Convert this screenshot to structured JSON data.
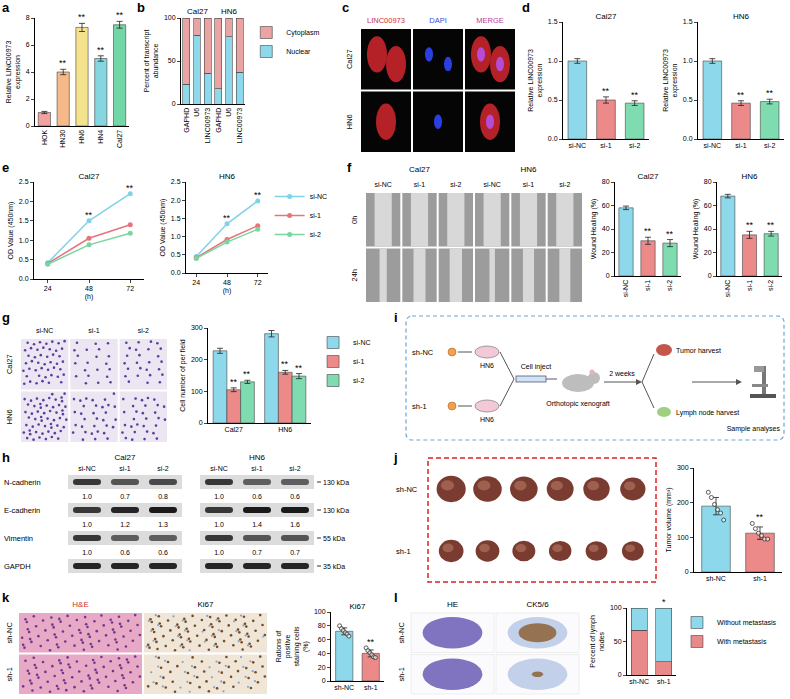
{
  "chart_data": [
    {
      "panel": "a",
      "type": "bar",
      "categories": [
        "HOK",
        "HN30",
        "HN6",
        "HN4",
        "Cal27"
      ],
      "values": [
        1.0,
        4.0,
        7.3,
        5.0,
        7.5
      ],
      "errors": [
        0.08,
        0.2,
        0.3,
        0.2,
        0.25
      ],
      "colors": [
        "#f2a29e",
        "#f6b98a",
        "#f4e38c",
        "#86d6e0",
        "#72d6a6"
      ],
      "y_label": "Relative LINC00973 expression",
      "ylim": [
        0,
        8
      ],
      "yticks": [
        0,
        2,
        4,
        6,
        8
      ],
      "annotations": [
        {
          "at": "HN30",
          "text": "**"
        },
        {
          "at": "HN6",
          "text": "**"
        },
        {
          "at": "HN4",
          "text": "**"
        },
        {
          "at": "Cal27",
          "text": "**"
        }
      ]
    },
    {
      "panel": "b",
      "type": "bar",
      "stacked": true,
      "categories": [
        "GAPHD",
        "U6",
        "LINC00973",
        "GAPHD",
        "U6",
        "LINC00973"
      ],
      "groups": [
        "Cal27",
        "Cal27",
        "Cal27",
        "HN6",
        "HN6",
        "HN6"
      ],
      "series": [
        {
          "name": "Nuclear",
          "color": "#8dd8ea",
          "values": [
            23,
            80,
            36,
            18,
            78,
            37
          ]
        },
        {
          "name": "Cytoplasm",
          "color": "#eaa4a4",
          "values": [
            77,
            20,
            64,
            82,
            22,
            63
          ]
        }
      ],
      "y_label": "Percent of transcript abundance",
      "ylim": [
        0,
        100
      ],
      "yticks": [
        0,
        50,
        100
      ],
      "legend": "right"
    },
    {
      "panel": "d",
      "type": "bar",
      "title": "Cal27",
      "categories": [
        "si-NC",
        "si-1",
        "si-2"
      ],
      "values": [
        1.0,
        0.5,
        0.46
      ],
      "errors": [
        0.03,
        0.04,
        0.03
      ],
      "colors": [
        "#8dd8ea",
        "#ec8a8a",
        "#7fdcb0"
      ],
      "y_label": "Relative LINC00973 expression",
      "ylim": [
        0,
        1.5
      ],
      "yticks": [
        {
          "value": 0,
          "label": "0.0"
        },
        0.5,
        {
          "value": 1,
          "label": "1.0"
        },
        1.5
      ],
      "annotations": [
        {
          "at": "si-1",
          "text": "**"
        },
        {
          "at": "si-2",
          "text": "**"
        }
      ]
    },
    {
      "type": "bar",
      "title": "HN6",
      "categories": [
        "si-NC",
        "si-1",
        "si-2"
      ],
      "values": [
        1.0,
        0.46,
        0.48
      ],
      "errors": [
        0.03,
        0.03,
        0.03
      ],
      "colors": [
        "#8dd8ea",
        "#ec8a8a",
        "#7fdcb0"
      ],
      "y_label": "Relative LINC00973 expression",
      "ylim": [
        0,
        1.5
      ],
      "yticks": [
        {
          "value": 0,
          "label": "0.0"
        },
        0.5,
        {
          "value": 1,
          "label": "1.0"
        },
        1.5
      ],
      "annotations": [
        {
          "at": "si-1",
          "text": "**"
        },
        {
          "at": "si-2",
          "text": "**"
        }
      ]
    },
    {
      "panel": "e",
      "type": "line",
      "title": "Cal27",
      "x": [
        24,
        48,
        72
      ],
      "x_label": "(h)",
      "y_label": "OD Value (450nm)",
      "xlim": [
        16,
        80
      ],
      "xticks": [
        24,
        48,
        72
      ],
      "ylim": [
        0,
        2.5
      ],
      "yticks": [
        {
          "value": 0,
          "label": "0.0"
        },
        0.5,
        {
          "value": 1,
          "label": "1.0"
        },
        1.5,
        {
          "value": 2,
          "label": "2.0"
        },
        2.5
      ],
      "marker": "circle",
      "series": [
        {
          "name": "si-NC",
          "color": "#7fd3e6",
          "values": [
            0.42,
            1.5,
            2.2
          ]
        },
        {
          "name": "si-1",
          "color": "#e8737a",
          "values": [
            0.4,
            1.05,
            1.4
          ]
        },
        {
          "name": "si-2",
          "color": "#77d6a2",
          "values": [
            0.38,
            0.88,
            1.18
          ]
        }
      ],
      "annotations": [
        {
          "at": 48,
          "text": "**"
        },
        {
          "at": 72,
          "text": "**"
        }
      ]
    },
    {
      "type": "line",
      "title": "HN6",
      "x": [
        24,
        48,
        72
      ],
      "x_label": "(h)",
      "y_label": "OD Value (450nm)",
      "xlim": [
        16,
        80
      ],
      "xticks": [
        24,
        48,
        72
      ],
      "ylim": [
        0,
        2.5
      ],
      "yticks": [
        {
          "value": 0,
          "label": "0.0"
        },
        0.5,
        {
          "value": 1,
          "label": "1.0"
        },
        1.5,
        {
          "value": 2,
          "label": "2.0"
        },
        2.5
      ],
      "marker": "circle",
      "legend": "right",
      "series": [
        {
          "name": "si-NC",
          "color": "#7fd3e6",
          "values": [
            0.45,
            1.35,
            1.98
          ]
        },
        {
          "name": "si-1",
          "color": "#e8737a",
          "values": [
            0.42,
            0.92,
            1.3
          ]
        },
        {
          "name": "si-2",
          "color": "#77d6a2",
          "values": [
            0.4,
            0.85,
            1.2
          ]
        }
      ],
      "annotations": [
        {
          "at": 48,
          "text": "**"
        },
        {
          "at": 72,
          "text": "**"
        }
      ]
    },
    {
      "type": "bar",
      "title": "Cal27",
      "categories": [
        "si-NC",
        "si-1",
        "si-2"
      ],
      "values": [
        58,
        30,
        28
      ],
      "errors": [
        1.5,
        3,
        3
      ],
      "colors": [
        "#8dd8ea",
        "#ec8a8a",
        "#7fdcb0"
      ],
      "y_label": "Wound Healing (%)",
      "ylim": [
        0,
        80
      ],
      "yticks": [
        0,
        20,
        40,
        60,
        80
      ],
      "annotations": [
        {
          "at": "si-1",
          "text": "**"
        },
        {
          "at": "si-2",
          "text": "**"
        }
      ]
    },
    {
      "type": "bar",
      "title": "HN6",
      "categories": [
        "si-NC",
        "si-1",
        "si-2"
      ],
      "values": [
        68,
        35,
        36
      ],
      "errors": [
        1.5,
        3,
        2
      ],
      "colors": [
        "#8dd8ea",
        "#ec8a8a",
        "#7fdcb0"
      ],
      "y_label": "Wound Healing (%)",
      "ylim": [
        0,
        80
      ],
      "yticks": [
        0,
        20,
        40,
        60,
        80
      ],
      "annotations": [
        {
          "at": "si-1",
          "text": "**"
        },
        {
          "at": "si-2",
          "text": "**"
        }
      ]
    },
    {
      "type": "bar",
      "categories": [
        "Cal27",
        "HN6"
      ],
      "series": [
        {
          "name": "si-NC",
          "color": "#8dd8ea",
          "values": [
            228,
            282
          ],
          "errors": [
            8,
            10
          ]
        },
        {
          "name": "si-1",
          "color": "#ec8a8a",
          "values": [
            105,
            160
          ],
          "errors": [
            6,
            6
          ]
        },
        {
          "name": "si-2",
          "color": "#7fdcb0",
          "values": [
            130,
            148
          ],
          "errors": [
            5,
            8
          ]
        }
      ],
      "y_label": "Cell number of per field",
      "ylim": [
        0,
        300
      ],
      "yticks": [
        0,
        100,
        200,
        300
      ],
      "legend": "right",
      "annotations": [
        {
          "at": "Cal27",
          "series": "si-1",
          "text": "**"
        },
        {
          "at": "Cal27",
          "series": "si-2",
          "text": "**"
        },
        {
          "at": "HN6",
          "series": "si-1",
          "text": "**"
        },
        {
          "at": "HN6",
          "series": "si-2",
          "text": "**"
        }
      ]
    },
    {
      "type": "bar",
      "categories": [
        "sh-NC",
        "sh-1"
      ],
      "values": [
        190,
        112
      ],
      "errors": [
        25,
        18
      ],
      "points": [
        [
          230,
          215,
          195,
          180,
          170,
          150
        ],
        [
          140,
          125,
          112,
          105,
          95,
          95
        ]
      ],
      "colors": [
        "#8dd8ea",
        "#ec8a8a"
      ],
      "y_label": "Tumor volume (mm³)",
      "ylim": [
        0,
        300
      ],
      "yticks": [
        0,
        100,
        200,
        300
      ],
      "annotations": [
        {
          "at": "sh-1",
          "text": "**"
        }
      ]
    },
    {
      "type": "bar",
      "title": "Ki67",
      "categories": [
        "sh-NC",
        "sh-1"
      ],
      "values": [
        72,
        40
      ],
      "errors": [
        5,
        5
      ],
      "points": [
        [
          80,
          76,
          73,
          70,
          68,
          65
        ],
        [
          48,
          44,
          41,
          38,
          35,
          34
        ]
      ],
      "colors": [
        "#8dd8ea",
        "#ec8a8a"
      ],
      "y_label": "Rations of positive staining cells (%)",
      "ylim": [
        0,
        100
      ],
      "yticks": [
        0,
        20,
        40,
        60,
        80,
        100
      ],
      "annotations": [
        {
          "at": "sh-1",
          "text": "**"
        }
      ]
    },
    {
      "type": "bar",
      "stacked": true,
      "categories": [
        "sh-NC",
        "sh-1"
      ],
      "series": [
        {
          "name": "With metastasis",
          "color": "#e88a8a",
          "values": [
            67,
            20
          ]
        },
        {
          "name": "Without metastasis",
          "color": "#8dd8ea",
          "values": [
            33,
            80
          ]
        }
      ],
      "y_label": "Percent of lymph nodes",
      "ylim": [
        0,
        100
      ],
      "yticks": [
        0,
        50,
        100
      ],
      "legend": "right",
      "annotations": [
        {
          "at": "sh-1",
          "text": "*"
        }
      ]
    }
  ],
  "images": {
    "c": {
      "panel": "c",
      "columns": [
        "LINC00973",
        "DAPI",
        "MERGE"
      ],
      "rows": [
        "Cal27",
        "HN6"
      ]
    },
    "f": {
      "panel": "f",
      "groups": [
        "Cal27",
        "HN6"
      ],
      "columns": [
        "si-NC",
        "si-1",
        "si-2"
      ],
      "rows": [
        "0h",
        "24h"
      ]
    },
    "g": {
      "panel": "g",
      "columns": [
        "si-NC",
        "si-1",
        "si-2"
      ],
      "rows": [
        "Cal27",
        "HN6"
      ]
    },
    "h": {
      "panel": "h",
      "groups": [
        {
          "name": "Cal27",
          "lanes": [
            "si-NC",
            "si-1",
            "si-2"
          ]
        },
        {
          "name": "HN6",
          "lanes": [
            "si-NC",
            "si-1",
            "si-2"
          ]
        }
      ],
      "rows": [
        {
          "label": "N-cadherin",
          "size": "130 kDa",
          "values": [
            [
              "1.0",
              "0.7",
              "0.8"
            ],
            [
              "1.0",
              "0.6",
              "0.6"
            ]
          ]
        },
        {
          "label": "E-cadherin",
          "size": "130 kDa",
          "values": [
            [
              "1.0",
              "1.2",
              "1.3"
            ],
            [
              "1.0",
              "1.4",
              "1.6"
            ]
          ]
        },
        {
          "label": "Vimentin",
          "size": "55 kDa",
          "values": [
            [
              "1.0",
              "0.6",
              "0.6"
            ],
            [
              "1.0",
              "0.7",
              "0.7"
            ]
          ]
        },
        {
          "label": "GAPDH",
          "size": "35 kDa"
        }
      ]
    },
    "i": {
      "panel": "i",
      "arms": [
        {
          "label": "sh-NC",
          "cells": "HN6"
        },
        {
          "label": "sh-1",
          "cells": "HN6"
        }
      ],
      "inject": "Cell inject",
      "model": "Orthotopic xenograft",
      "time": "2 weeks",
      "harvest": [
        "Tumor harvest",
        "Lymph node harvest"
      ],
      "analysis": "Sample analyses"
    },
    "j": {
      "panel": "j",
      "rows": [
        "sh-NC",
        "sh-1"
      ]
    },
    "k": {
      "panel": "k",
      "columns": [
        "H&E",
        "Ki67"
      ],
      "rows": [
        "sh-NC",
        "sh-1"
      ]
    },
    "l": {
      "panel": "l",
      "columns": [
        "HE",
        "CK5/6"
      ],
      "rows": [
        "sh-NC",
        "sh-1"
      ]
    }
  }
}
